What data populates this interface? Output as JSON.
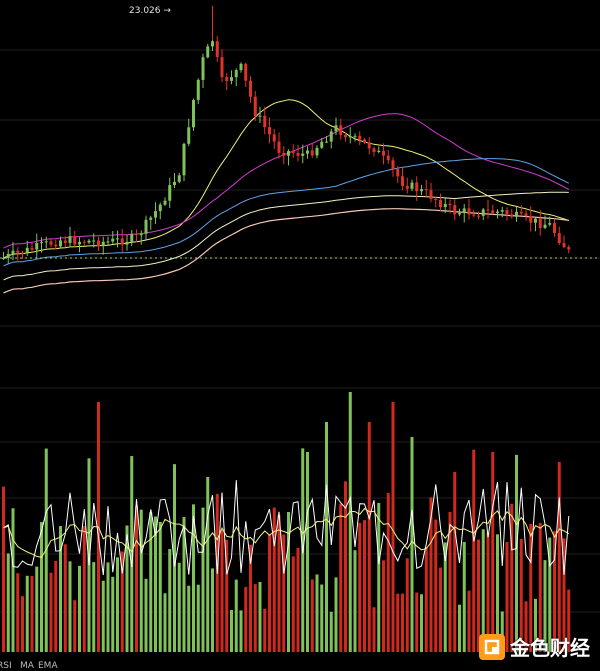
{
  "chart_data": [
    {
      "type": "candlestick",
      "title": "",
      "high_label": "23.026 →",
      "high_value": 23.026,
      "colors": {
        "up": "#7fc25a",
        "down": "#e0342b"
      },
      "overlays": [
        {
          "color": "#f0f07a"
        },
        {
          "color": "#9b7cf0"
        },
        {
          "color": "#d43bd6"
        },
        {
          "color": "#5fa3e6"
        },
        {
          "color": "#f2f2c0"
        },
        {
          "color": "#f3c8b4"
        }
      ],
      "guide_line": {
        "color": "#9bd47a",
        "style": "dotted"
      },
      "grid": true
    },
    {
      "type": "bar",
      "title": "",
      "legend": [
        "RSI",
        "MA",
        "EMA"
      ],
      "colors": {
        "up": "#7fc25a",
        "down": "#d2291e"
      },
      "lines": [
        {
          "name": "RSI",
          "color": "#ffffff"
        },
        {
          "name": "MA",
          "color": "#f2f28a"
        }
      ],
      "grid": true
    }
  ],
  "logo": {
    "text": "金色财经",
    "icon": "jinse-logo-icon"
  }
}
